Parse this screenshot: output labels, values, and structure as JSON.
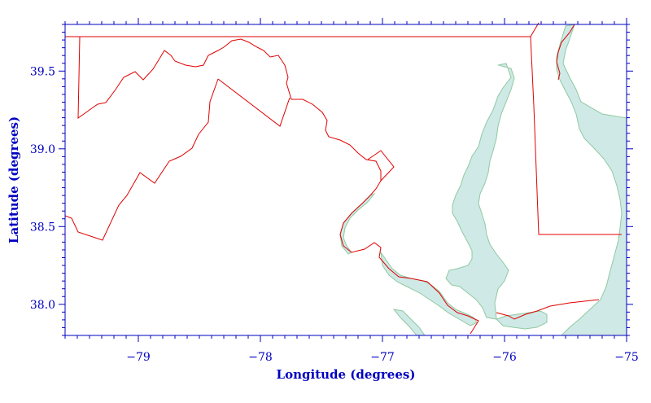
{
  "map": {
    "x_axis_title": "Longitude (degrees)",
    "y_axis_title": "Latitude (degrees)",
    "x_ticks": [
      {
        "value": -79,
        "label": "−79"
      },
      {
        "value": -78,
        "label": "−78"
      },
      {
        "value": -77,
        "label": "−77"
      },
      {
        "value": -76,
        "label": "−76"
      },
      {
        "value": -75,
        "label": "−75"
      }
    ],
    "y_ticks": [
      {
        "value": 39.5,
        "label": "39.5"
      },
      {
        "value": 39.0,
        "label": "39.0"
      },
      {
        "value": 38.5,
        "label": "38.5"
      },
      {
        "value": 38.0,
        "label": "38.0"
      }
    ],
    "lon_range": [
      -79.6,
      -75.0
    ],
    "lat_range": [
      37.8,
      39.8
    ],
    "colors": {
      "axis": "#0000c0",
      "border": "#e00000",
      "water_fill": "#cfe9e6",
      "water_edge": "#8fc9a0",
      "background": "#ffffff"
    }
  }
}
